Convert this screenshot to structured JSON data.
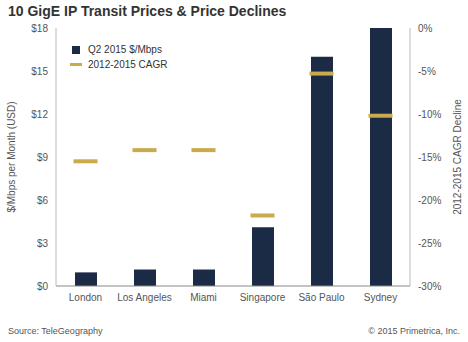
{
  "chart_data": {
    "type": "bar",
    "title": "10 GigE IP Transit Prices & Price Declines",
    "y_label": "$/Mbps per Month (USD)",
    "y2_label": "2012-2015 CAGR Decline",
    "annotations": [
      "Source: TeleGeography",
      "© 2015 Primetrica, Inc."
    ],
    "categories": [
      "London",
      "Los Angeles",
      "Miami",
      "Singapore",
      "São Paulo",
      "Sydney"
    ],
    "series": [
      {
        "name": "Q2 2015 $/Mbps",
        "type": "bar",
        "color": "#1c2b45",
        "values": [
          0.95,
          1.15,
          1.15,
          4.1,
          16,
          18
        ]
      },
      {
        "name": "2012-2015 CAGR",
        "type": "scatter",
        "marker": "dash",
        "color": "#c9aa4c",
        "axis": "y2",
        "values": [
          -15.5,
          -14.2,
          -14.2,
          -21.8,
          -5.3,
          -10.2
        ]
      }
    ],
    "ylim": [
      0,
      18
    ],
    "yticks": [
      {
        "value": 0,
        "label": "$0"
      },
      {
        "value": 3,
        "label": "$3"
      },
      {
        "value": 6,
        "label": "$6"
      },
      {
        "value": 9,
        "label": "$9"
      },
      {
        "value": 12,
        "label": "$12"
      },
      {
        "value": 15,
        "label": "$15"
      },
      {
        "value": 18,
        "label": "$18"
      }
    ],
    "y2lim": [
      -30,
      0
    ],
    "y2ticks": [
      {
        "value": -30,
        "label": "-30%"
      },
      {
        "value": -25,
        "label": "-25%"
      },
      {
        "value": -20,
        "label": "-20%"
      },
      {
        "value": -15,
        "label": "-15%"
      },
      {
        "value": -10,
        "label": "-10%"
      },
      {
        "value": -5,
        "label": "-5%"
      },
      {
        "value": 0,
        "label": "0%"
      }
    ],
    "grid": false,
    "legend": "upper left"
  }
}
